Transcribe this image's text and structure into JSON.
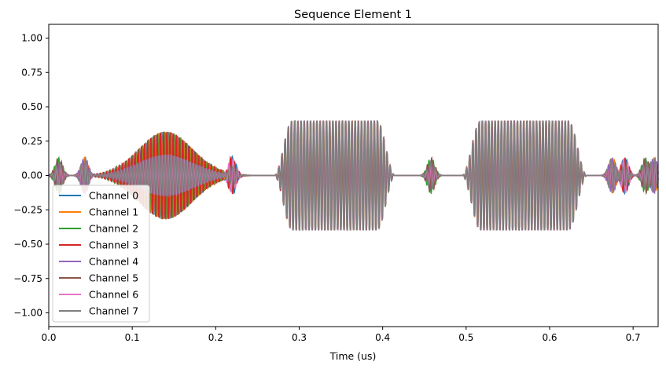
{
  "chart_data": {
    "type": "line",
    "title": "Sequence Element 1",
    "xlabel": "Time (us)",
    "ylabel": "",
    "xlim": [
      0.0,
      0.73
    ],
    "ylim": [
      -1.1,
      1.1
    ],
    "xticks": [
      "0.0",
      "0.1",
      "0.2",
      "0.3",
      "0.4",
      "0.5",
      "0.6",
      "0.7"
    ],
    "xtick_values": [
      0.0,
      0.1,
      0.2,
      0.3,
      0.4,
      0.5,
      0.6,
      0.7
    ],
    "yticks": [
      "−1.00",
      "−0.75",
      "−0.50",
      "−0.25",
      "0.00",
      "0.25",
      "0.50",
      "0.75",
      "1.00"
    ],
    "ytick_values": [
      -1.0,
      -0.75,
      -0.5,
      -0.25,
      0.0,
      0.25,
      0.5,
      0.75,
      1.0
    ],
    "grid": false,
    "legend_position": "lower-left",
    "pulses": [
      {
        "start": 0.075,
        "end": 0.205,
        "peak_amplitude_ch0_3": 0.32,
        "peak_amplitude_ch4_7": 0.15
      },
      {
        "start": 0.27,
        "end": 0.415,
        "peak_amplitude": 0.4
      },
      {
        "start": 0.495,
        "end": 0.645,
        "peak_amplitude": 0.4
      }
    ],
    "series": [
      {
        "name": "Channel 0",
        "color": "#1f77b4"
      },
      {
        "name": "Channel 1",
        "color": "#ff7f0e"
      },
      {
        "name": "Channel 2",
        "color": "#2ca02c"
      },
      {
        "name": "Channel 3",
        "color": "#d62728"
      },
      {
        "name": "Channel 4",
        "color": "#9467bd"
      },
      {
        "name": "Channel 5",
        "color": "#8c564b"
      },
      {
        "name": "Channel 6",
        "color": "#e377c2"
      },
      {
        "name": "Channel 7",
        "color": "#7f7f7f"
      }
    ]
  }
}
